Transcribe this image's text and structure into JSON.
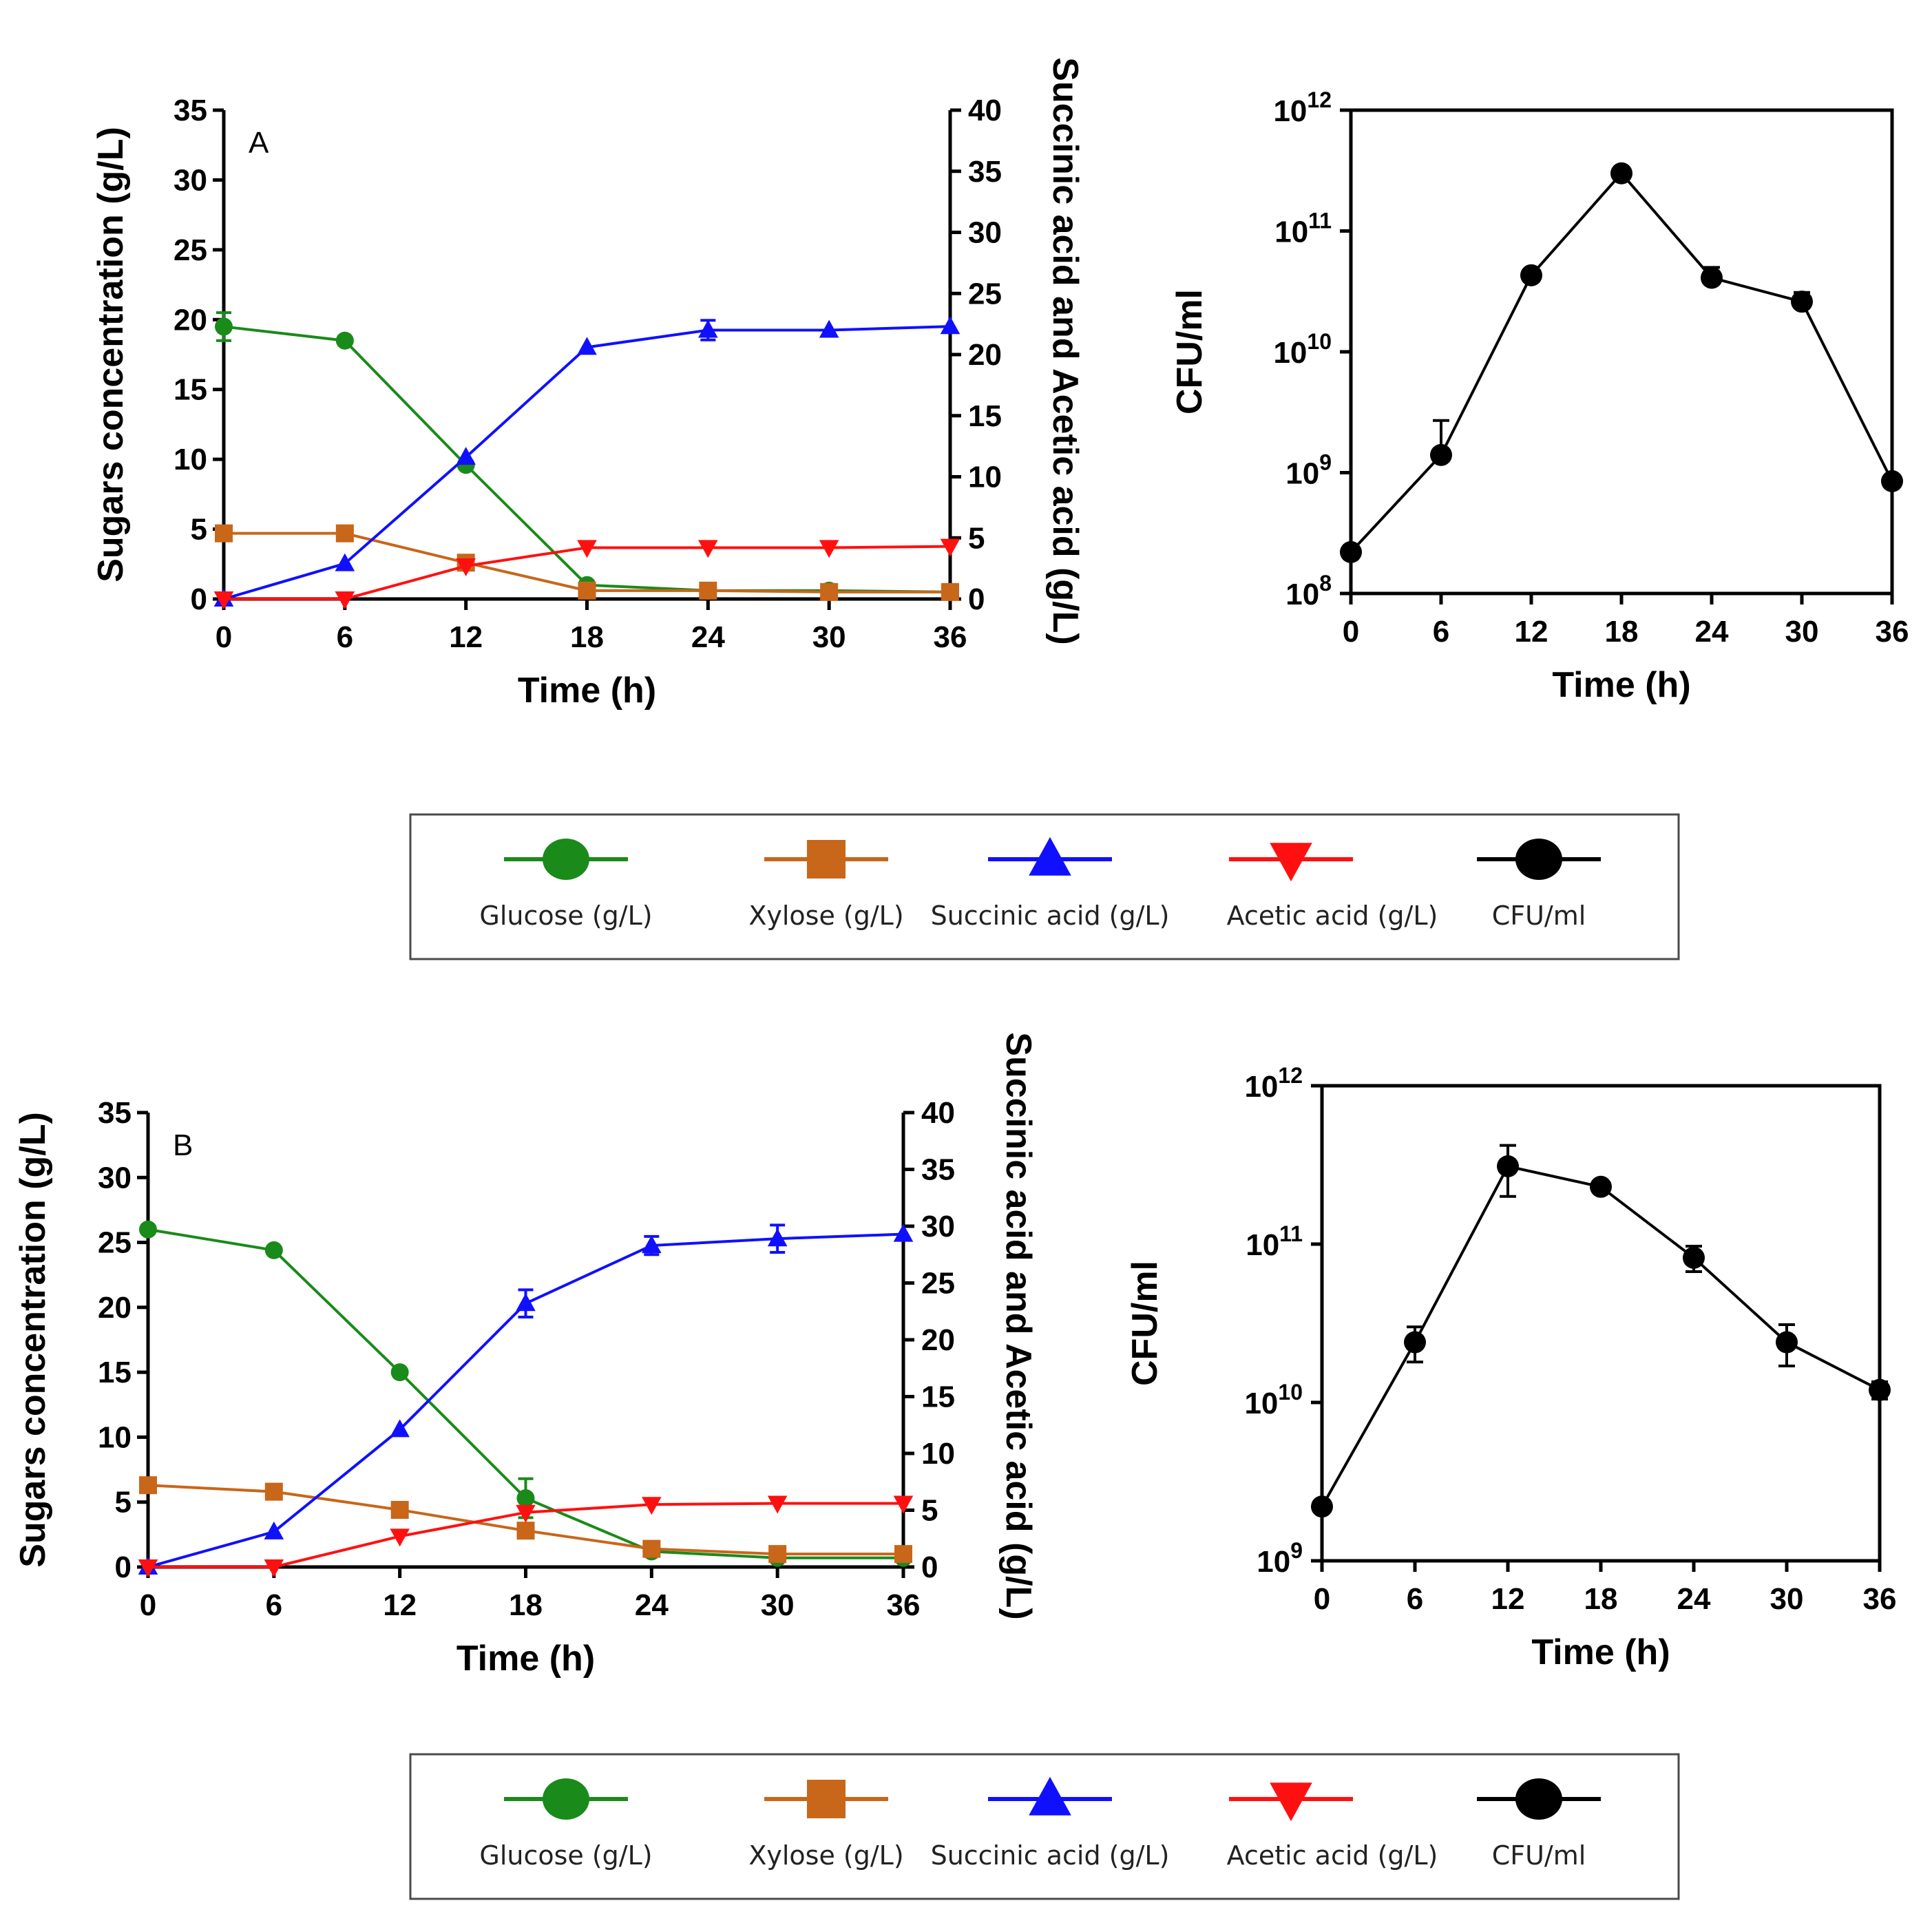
{
  "legend": {
    "items": [
      {
        "label": "Glucose (g/L)",
        "color": "#1a8a1a",
        "marker": "circle"
      },
      {
        "label": "Xylose (g/L)",
        "color": "#c8661a",
        "marker": "square"
      },
      {
        "label": "Succinic acid (g/L)",
        "color": "#1010ff",
        "marker": "triangle-up"
      },
      {
        "label": "Acetic acid (g/L)",
        "color": "#ff1010",
        "marker": "triangle-down"
      },
      {
        "label": "CFU/ml",
        "color": "#000000",
        "marker": "circle"
      }
    ]
  },
  "chart_data": [
    {
      "id": "A-main",
      "type": "line",
      "panel_label": "A",
      "x": [
        0,
        6,
        12,
        18,
        24,
        30,
        36
      ],
      "x_ticks": [
        "0",
        "6",
        "12",
        "18",
        "24",
        "30",
        "36"
      ],
      "xlim": [
        0,
        36
      ],
      "xlabel": "Time (h)",
      "ylabel": "Sugars concentration (g/L)",
      "ylim": [
        0,
        35
      ],
      "y_ticks": [
        "0",
        "5",
        "10",
        "15",
        "20",
        "25",
        "30",
        "35"
      ],
      "y2label": "Succinic acid and Acetic acid (g/L)",
      "y2lim": [
        0,
        40
      ],
      "y2_ticks": [
        "0",
        "5",
        "10",
        "15",
        "20",
        "25",
        "30",
        "35",
        "40"
      ],
      "series": [
        {
          "name": "Glucose (g/L)",
          "axis": "left",
          "color": "#1a8a1a",
          "marker": "circle",
          "values": [
            19.5,
            18.5,
            9.6,
            1.0,
            0.6,
            0.6,
            0.5
          ],
          "errors": [
            1.0,
            0,
            0,
            0,
            0,
            0,
            0
          ]
        },
        {
          "name": "Xylose (g/L)",
          "axis": "left",
          "color": "#c8661a",
          "marker": "square",
          "values": [
            4.7,
            4.7,
            2.6,
            0.6,
            0.6,
            0.5,
            0.5
          ],
          "errors": [
            0,
            0,
            0,
            0,
            0,
            0,
            0
          ]
        },
        {
          "name": "Succinic acid (g/L)",
          "axis": "right",
          "color": "#1010ff",
          "marker": "triangle-up",
          "values": [
            0,
            2.9,
            11.6,
            20.6,
            22.0,
            22.0,
            22.3
          ],
          "errors": [
            0,
            0,
            0,
            0,
            0.8,
            0,
            0
          ]
        },
        {
          "name": "Acetic acid (g/L)",
          "axis": "right",
          "color": "#ff1010",
          "marker": "triangle-down",
          "values": [
            0,
            0,
            2.7,
            4.2,
            4.2,
            4.2,
            4.3
          ],
          "errors": [
            0,
            0,
            0,
            0,
            0,
            0,
            0
          ]
        }
      ]
    },
    {
      "id": "A-cfu",
      "type": "line",
      "x": [
        0,
        6,
        12,
        18,
        24,
        30,
        36
      ],
      "x_ticks": [
        "0",
        "6",
        "12",
        "18",
        "24",
        "30",
        "36"
      ],
      "xlim": [
        0,
        36
      ],
      "xlabel": "Time (h)",
      "ylabel": "CFU/ml",
      "yscale": "log",
      "ylim": [
        100000000,
        1000000000000
      ],
      "y_ticks": [
        {
          "base": "10",
          "exp": "8"
        },
        {
          "base": "10",
          "exp": "9"
        },
        {
          "base": "10",
          "exp": "10"
        },
        {
          "base": "10",
          "exp": "11"
        },
        {
          "base": "10",
          "exp": "12"
        }
      ],
      "series": [
        {
          "name": "CFU/ml",
          "color": "#000000",
          "marker": "circle",
          "values": [
            220000000,
            1400000000,
            43000000000,
            300000000000,
            41000000000,
            26000000000,
            850000000
          ],
          "errors_up": [
            0,
            1300000000,
            0,
            0,
            9000000000,
            5000000000,
            0
          ]
        }
      ]
    },
    {
      "id": "B-main",
      "type": "line",
      "panel_label": "B",
      "x": [
        0,
        6,
        12,
        18,
        24,
        30,
        36
      ],
      "x_ticks": [
        "0",
        "6",
        "12",
        "18",
        "24",
        "30",
        "36"
      ],
      "xlim": [
        0,
        36
      ],
      "xlabel": "Time (h)",
      "ylabel": "Sugars concentration (g/L)",
      "ylim": [
        0,
        35
      ],
      "y_ticks": [
        "0",
        "5",
        "10",
        "15",
        "20",
        "25",
        "30",
        "35"
      ],
      "y2label": "Succinic acid and Acetic acid (g/L)",
      "y2lim": [
        0,
        40
      ],
      "y2_ticks": [
        "0",
        "5",
        "10",
        "15",
        "20",
        "25",
        "30",
        "35",
        "40"
      ],
      "series": [
        {
          "name": "Glucose (g/L)",
          "axis": "left",
          "color": "#1a8a1a",
          "marker": "circle",
          "values": [
            26.0,
            24.4,
            15.0,
            5.3,
            1.2,
            0.7,
            0.7
          ],
          "errors": [
            0,
            0,
            0,
            1.5,
            0,
            0,
            0
          ]
        },
        {
          "name": "Xylose (g/L)",
          "axis": "left",
          "color": "#c8661a",
          "marker": "square",
          "values": [
            6.3,
            5.8,
            4.4,
            2.8,
            1.4,
            1.0,
            1.0
          ],
          "errors": [
            0,
            0,
            0,
            0,
            0,
            0,
            0
          ]
        },
        {
          "name": "Succinic acid (g/L)",
          "axis": "right",
          "color": "#1010ff",
          "marker": "triangle-up",
          "values": [
            0,
            3.1,
            12.1,
            23.2,
            28.3,
            28.9,
            29.3
          ],
          "errors": [
            0,
            0,
            0,
            1.2,
            0.8,
            1.2,
            0
          ]
        },
        {
          "name": "Acetic acid (g/L)",
          "axis": "right",
          "color": "#ff1010",
          "marker": "triangle-down",
          "values": [
            0,
            0,
            2.7,
            4.8,
            5.5,
            5.6,
            5.6
          ],
          "errors": [
            0,
            0,
            0,
            0,
            0,
            0,
            0
          ]
        }
      ]
    },
    {
      "id": "B-cfu",
      "type": "line",
      "x": [
        0,
        6,
        12,
        18,
        24,
        30,
        36
      ],
      "x_ticks": [
        "0",
        "6",
        "12",
        "18",
        "24",
        "30",
        "36"
      ],
      "xlim": [
        0,
        36
      ],
      "xlabel": "Time (h)",
      "ylabel": "CFU/ml",
      "yscale": "log",
      "ylim": [
        1000000000,
        1000000000000
      ],
      "y_ticks": [
        {
          "base": "10",
          "exp": "9"
        },
        {
          "base": "10",
          "exp": "10"
        },
        {
          "base": "10",
          "exp": "11"
        },
        {
          "base": "10",
          "exp": "12"
        }
      ],
      "series": [
        {
          "name": "CFU/ml",
          "color": "#000000",
          "marker": "circle",
          "values": [
            2200000000,
            24000000000,
            310000000000,
            230000000000,
            82000000000,
            24000000000,
            12000000000
          ],
          "errors": [
            0,
            6000000000,
            110000000000,
            0,
            15000000000,
            7000000000,
            1500000000
          ]
        }
      ]
    }
  ]
}
